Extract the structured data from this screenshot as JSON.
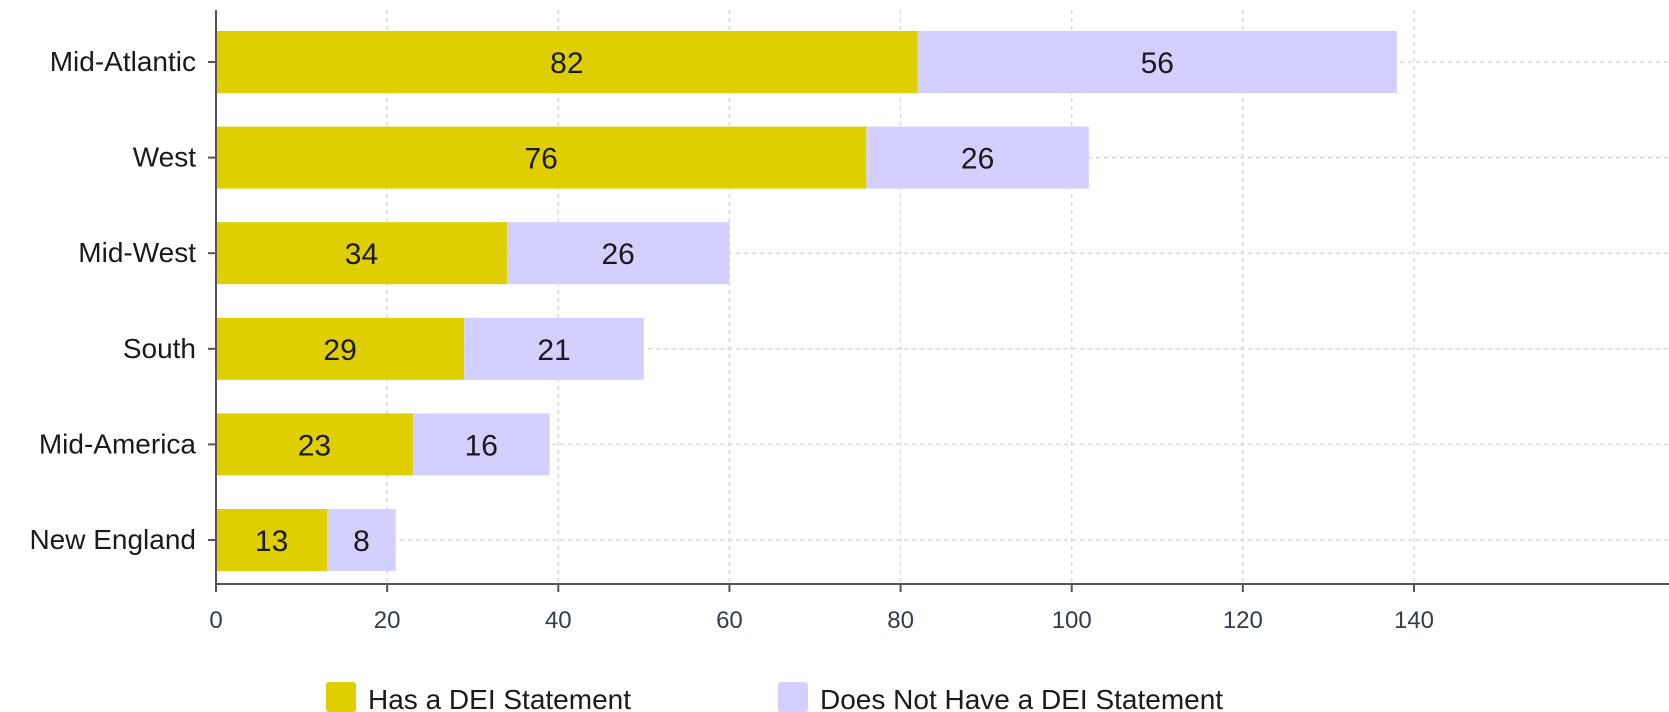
{
  "chart_data": {
    "type": "bar",
    "orientation": "horizontal",
    "stacked": true,
    "categories": [
      "Mid-Atlantic",
      "West",
      "Mid-West",
      "South",
      "Mid-America",
      "New England"
    ],
    "series": [
      {
        "name": "Has a DEI Statement",
        "values": [
          82,
          76,
          34,
          29,
          23,
          13
        ],
        "color": "#e0cf00"
      },
      {
        "name": "Does Not Have a DEI Statement",
        "values": [
          56,
          26,
          26,
          21,
          16,
          8
        ],
        "color": "#d3d0ff"
      }
    ],
    "xticks": [
      0,
      20,
      40,
      60,
      80,
      100,
      120,
      140
    ],
    "xlim": [
      0,
      158
    ],
    "grid": true,
    "legend_position": "bottom",
    "title": "",
    "xlabel": "",
    "ylabel": ""
  }
}
